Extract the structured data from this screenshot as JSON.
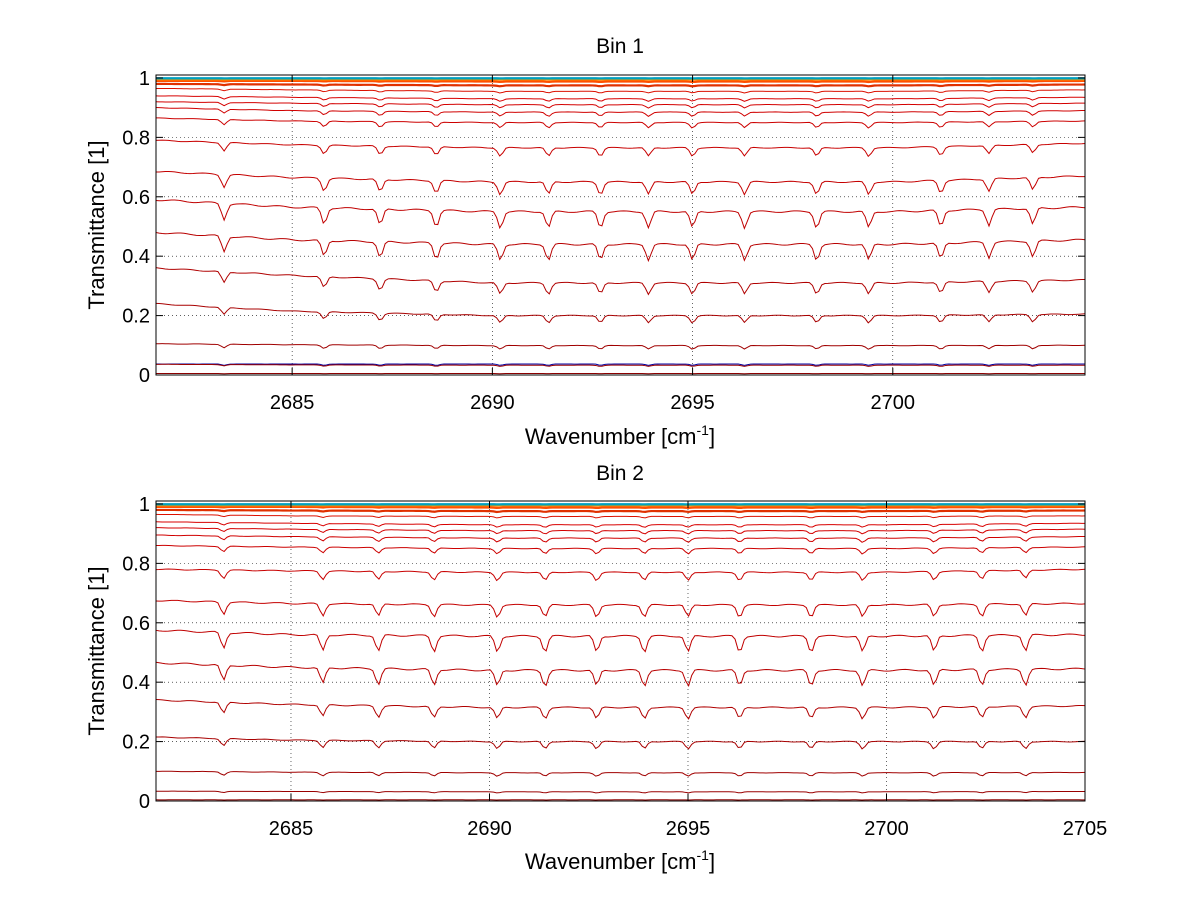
{
  "chart_data": [
    {
      "type": "line",
      "title": "Bin 1",
      "xlabel": "Wavenumber [cm",
      "xlabel_sup": "-1",
      "xlabel_end": "]",
      "ylabel": "Transmittance [1]",
      "xlim": [
        2681.6,
        2704.8
      ],
      "ylim": [
        0,
        1.01
      ],
      "xticks": [
        2685,
        2690,
        2695,
        2700
      ],
      "xtick_labels": [
        "2685",
        "2690",
        "2695",
        "2700"
      ],
      "yticks": [
        0,
        0.2,
        0.4,
        0.6,
        0.8,
        1
      ],
      "ytick_labels": [
        "0",
        "0.2",
        "0.4",
        "0.6",
        "0.8",
        "1"
      ],
      "grid": true,
      "x_sample": [
        2681.6,
        2685,
        2690,
        2695,
        2700,
        2704.8
      ],
      "series": [
        {
          "color": "#0000a0",
          "values": [
            0.037,
            0.037,
            0.037,
            0.037,
            0.037,
            0.037
          ]
        },
        {
          "color": "#8b0000",
          "values": [
            0.005,
            0.005,
            0.005,
            0.005,
            0.005,
            0.005
          ]
        },
        {
          "color": "#9a0000",
          "values": [
            0.036,
            0.034,
            0.033,
            0.033,
            0.033,
            0.033
          ]
        },
        {
          "color": "#a00000",
          "values": [
            0.105,
            0.102,
            0.099,
            0.099,
            0.099,
            0.1
          ]
        },
        {
          "color": "#a80000",
          "values": [
            0.24,
            0.215,
            0.2,
            0.2,
            0.2,
            0.205
          ]
        },
        {
          "color": "#b00000",
          "values": [
            0.36,
            0.335,
            0.31,
            0.31,
            0.31,
            0.32
          ]
        },
        {
          "color": "#b80000",
          "values": [
            0.48,
            0.455,
            0.44,
            0.44,
            0.44,
            0.455
          ]
        },
        {
          "color": "#c00000",
          "values": [
            0.59,
            0.565,
            0.55,
            0.55,
            0.55,
            0.565
          ]
        },
        {
          "color": "#c40000",
          "values": [
            0.685,
            0.665,
            0.65,
            0.65,
            0.65,
            0.67
          ]
        },
        {
          "color": "#c80000",
          "values": [
            0.79,
            0.775,
            0.765,
            0.765,
            0.765,
            0.78
          ]
        },
        {
          "color": "#cc0000",
          "values": [
            0.865,
            0.855,
            0.85,
            0.85,
            0.85,
            0.855
          ]
        },
        {
          "color": "#d00000",
          "values": [
            0.9,
            0.89,
            0.885,
            0.885,
            0.885,
            0.89
          ]
        },
        {
          "color": "#d40000",
          "values": [
            0.92,
            0.915,
            0.91,
            0.91,
            0.91,
            0.915
          ]
        },
        {
          "color": "#d80000",
          "values": [
            0.94,
            0.935,
            0.93,
            0.93,
            0.93,
            0.935
          ]
        },
        {
          "color": "#dc1000",
          "values": [
            0.965,
            0.96,
            0.955,
            0.955,
            0.955,
            0.96
          ]
        },
        {
          "color": "#e03000",
          "values": [
            0.98,
            0.978,
            0.975,
            0.975,
            0.975,
            0.978
          ]
        },
        {
          "color": "#ff5000",
          "values": [
            0.99,
            0.99,
            0.988,
            0.988,
            0.988,
            0.99
          ]
        },
        {
          "color": "#ff8000",
          "values": [
            0.995,
            0.995,
            0.995,
            0.995,
            0.995,
            0.995
          ]
        },
        {
          "color": "#80c040",
          "values": [
            0.998,
            0.998,
            0.998,
            0.998,
            0.998,
            0.998
          ]
        },
        {
          "color": "#00a0c0",
          "values": [
            0.999,
            0.999,
            0.999,
            0.999,
            0.999,
            0.999
          ]
        }
      ]
    },
    {
      "type": "line",
      "title": "Bin 2",
      "xlabel": "Wavenumber [cm",
      "xlabel_sup": "-1",
      "xlabel_end": "]",
      "ylabel": "Transmittance [1]",
      "xlim": [
        2681.6,
        2705
      ],
      "ylim": [
        0,
        1.01
      ],
      "xticks": [
        2685,
        2690,
        2695,
        2700,
        2705
      ],
      "xtick_labels": [
        "2685",
        "2690",
        "2695",
        "2700",
        "2705"
      ],
      "yticks": [
        0,
        0.2,
        0.4,
        0.6,
        0.8,
        1
      ],
      "ytick_labels": [
        "0",
        "0.2",
        "0.4",
        "0.6",
        "0.8",
        "1"
      ],
      "grid": true,
      "x_sample": [
        2681.6,
        2685,
        2690,
        2695,
        2700,
        2705
      ],
      "series": [
        {
          "color": "#8b0000",
          "values": [
            0.004,
            0.004,
            0.004,
            0.004,
            0.004,
            0.004
          ]
        },
        {
          "color": "#9a0000",
          "values": [
            0.033,
            0.032,
            0.031,
            0.031,
            0.031,
            0.032
          ]
        },
        {
          "color": "#a00000",
          "values": [
            0.1,
            0.097,
            0.095,
            0.095,
            0.095,
            0.096
          ]
        },
        {
          "color": "#a80000",
          "values": [
            0.215,
            0.205,
            0.2,
            0.2,
            0.2,
            0.2
          ]
        },
        {
          "color": "#b00000",
          "values": [
            0.34,
            0.325,
            0.315,
            0.315,
            0.315,
            0.32
          ]
        },
        {
          "color": "#b80000",
          "values": [
            0.465,
            0.45,
            0.44,
            0.44,
            0.44,
            0.445
          ]
        },
        {
          "color": "#c00000",
          "values": [
            0.575,
            0.56,
            0.555,
            0.555,
            0.555,
            0.56
          ]
        },
        {
          "color": "#c40000",
          "values": [
            0.675,
            0.665,
            0.66,
            0.66,
            0.66,
            0.665
          ]
        },
        {
          "color": "#c80000",
          "values": [
            0.78,
            0.775,
            0.77,
            0.77,
            0.77,
            0.78
          ]
        },
        {
          "color": "#cc0000",
          "values": [
            0.86,
            0.855,
            0.85,
            0.85,
            0.85,
            0.855
          ]
        },
        {
          "color": "#d00000",
          "values": [
            0.895,
            0.89,
            0.885,
            0.885,
            0.885,
            0.89
          ]
        },
        {
          "color": "#d40000",
          "values": [
            0.92,
            0.915,
            0.91,
            0.91,
            0.91,
            0.915
          ]
        },
        {
          "color": "#d80000",
          "values": [
            0.94,
            0.935,
            0.93,
            0.93,
            0.93,
            0.935
          ]
        },
        {
          "color": "#dc1000",
          "values": [
            0.965,
            0.96,
            0.958,
            0.958,
            0.958,
            0.96
          ]
        },
        {
          "color": "#e03000",
          "values": [
            0.98,
            0.978,
            0.976,
            0.976,
            0.976,
            0.978
          ]
        },
        {
          "color": "#ff5000",
          "values": [
            0.99,
            0.99,
            0.988,
            0.988,
            0.988,
            0.99
          ]
        },
        {
          "color": "#ff8000",
          "values": [
            0.995,
            0.995,
            0.995,
            0.995,
            0.995,
            0.995
          ]
        },
        {
          "color": "#80c040",
          "values": [
            0.998,
            0.998,
            0.998,
            0.998,
            0.998,
            0.998
          ]
        },
        {
          "color": "#00a0c0",
          "values": [
            0.999,
            0.999,
            0.999,
            0.999,
            0.999,
            0.999
          ]
        }
      ]
    }
  ]
}
